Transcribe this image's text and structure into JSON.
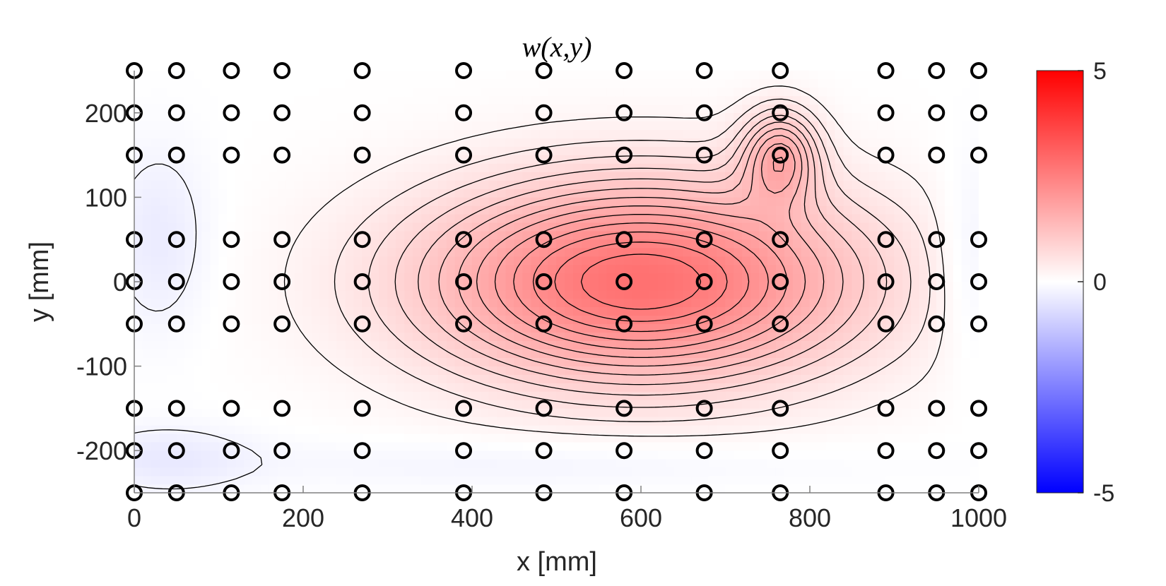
{
  "chart_data": {
    "type": "heatmap",
    "subtype": "filled-contour",
    "title": "w(x,y)",
    "xlabel": "x [mm]",
    "ylabel": "y [mm]",
    "xlim": [
      0,
      1000
    ],
    "ylim": [
      -250,
      250
    ],
    "xticks": [
      0,
      200,
      400,
      600,
      800,
      1000
    ],
    "yticks": [
      -200,
      -100,
      0,
      100,
      200
    ],
    "xtick_labels": [
      "0",
      "200",
      "400",
      "600",
      "800",
      "1000"
    ],
    "ytick_labels": [
      "-200",
      "-100",
      "0",
      "100",
      "200"
    ],
    "grid": false,
    "colormap": "blue-white-red",
    "color_low": "#0000ff",
    "color_mid": "#ffffff",
    "color_high": "#ff0000",
    "colorbar": {
      "position": "right",
      "min": -5,
      "max": 5,
      "tick_values": [
        5,
        0,
        -5
      ],
      "tick_labels": [
        "5",
        "0",
        "-5"
      ]
    },
    "measurement_points": {
      "x": [
        0,
        50,
        115,
        175,
        270,
        390,
        485,
        580,
        675,
        765,
        890,
        950,
        1000
      ],
      "y": [
        250,
        200,
        150,
        50,
        0,
        -50,
        -150,
        -200,
        -250
      ]
    },
    "field_peaks": [
      {
        "x": 600,
        "y": 0,
        "value": 2.8,
        "width": 260,
        "height": 120
      },
      {
        "x": 765,
        "y": 150,
        "value": 1.4,
        "width": 45,
        "height": 55
      }
    ],
    "field_dips": [
      {
        "x": 30,
        "y": 50,
        "value": -0.4,
        "width": 60,
        "height": 110
      },
      {
        "x": 40,
        "y": -210,
        "value": -0.4,
        "width": 100,
        "height": 40
      },
      {
        "x": 990,
        "y": 20,
        "value": -0.4,
        "width": 40,
        "height": 120
      },
      {
        "x": 500,
        "y": -215,
        "value": -0.25,
        "width": 350,
        "height": 30
      }
    ]
  }
}
